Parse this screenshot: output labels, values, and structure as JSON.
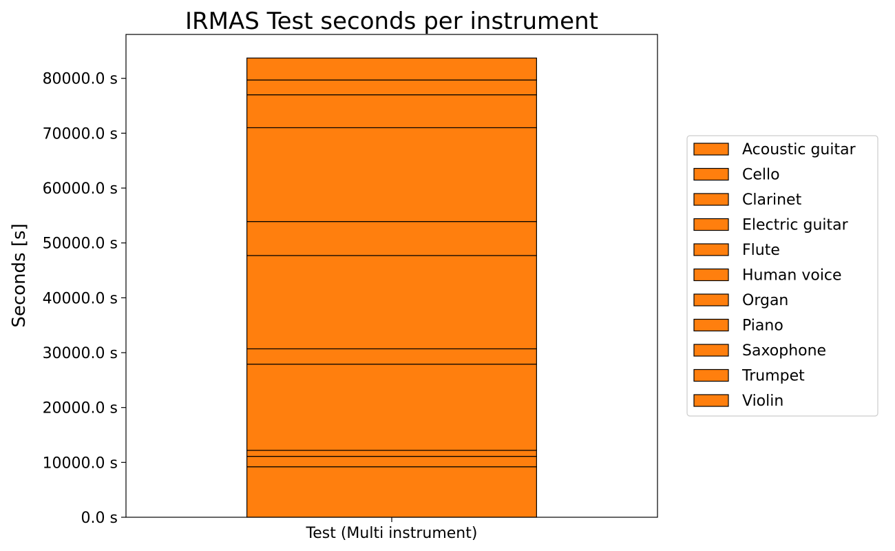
{
  "chart_data": {
    "type": "bar",
    "stacked": true,
    "title": "IRMAS Test seconds per instrument",
    "xlabel": "",
    "ylabel": "Seconds [s]",
    "categories": [
      "Test (Multi instrument)"
    ],
    "y_unit_suffix": " s",
    "ylim": [
      0,
      88000
    ],
    "yticks": [
      0,
      10000,
      20000,
      30000,
      40000,
      50000,
      60000,
      70000,
      80000
    ],
    "ytick_labels": [
      "0.0 s",
      "10000.0 s",
      "20000.0 s",
      "30000.0 s",
      "40000.0 s",
      "50000.0 s",
      "60000.0 s",
      "70000.0 s",
      "80000.0 s"
    ],
    "bar_color": "#ff7f0e",
    "edge_color": "#000000",
    "legend_position": "right",
    "grid": false,
    "series": [
      {
        "name": "Acoustic guitar",
        "values": [
          9200
        ]
      },
      {
        "name": "Cello",
        "values": [
          1900
        ]
      },
      {
        "name": "Clarinet",
        "values": [
          1100
        ]
      },
      {
        "name": "Electric guitar",
        "values": [
          15700
        ]
      },
      {
        "name": "Flute",
        "values": [
          2800
        ]
      },
      {
        "name": "Human voice",
        "values": [
          17000
        ]
      },
      {
        "name": "Organ",
        "values": [
          6200
        ]
      },
      {
        "name": "Piano",
        "values": [
          17100
        ]
      },
      {
        "name": "Saxophone",
        "values": [
          6000
        ]
      },
      {
        "name": "Trumpet",
        "values": [
          2700
        ]
      },
      {
        "name": "Violin",
        "values": [
          4000
        ]
      }
    ]
  }
}
